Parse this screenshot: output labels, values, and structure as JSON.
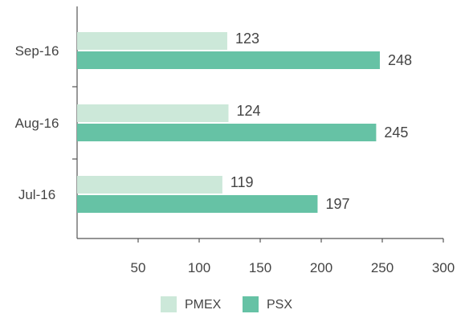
{
  "chart_data": {
    "type": "bar",
    "orientation": "horizontal",
    "categories": [
      "Sep-16",
      "Aug-16",
      "Jul-16"
    ],
    "series": [
      {
        "name": "PMEX",
        "values": [
          123,
          124,
          119
        ],
        "color": "#cce8d9"
      },
      {
        "name": "PSX",
        "values": [
          248,
          245,
          197
        ],
        "color": "#66c2a5"
      }
    ],
    "x_ticks": [
      50,
      100,
      150,
      200,
      250,
      300
    ],
    "xlim": [
      0,
      300
    ],
    "title": "",
    "xlabel": "",
    "ylabel": "",
    "grid": false,
    "legend_position": "bottom"
  }
}
